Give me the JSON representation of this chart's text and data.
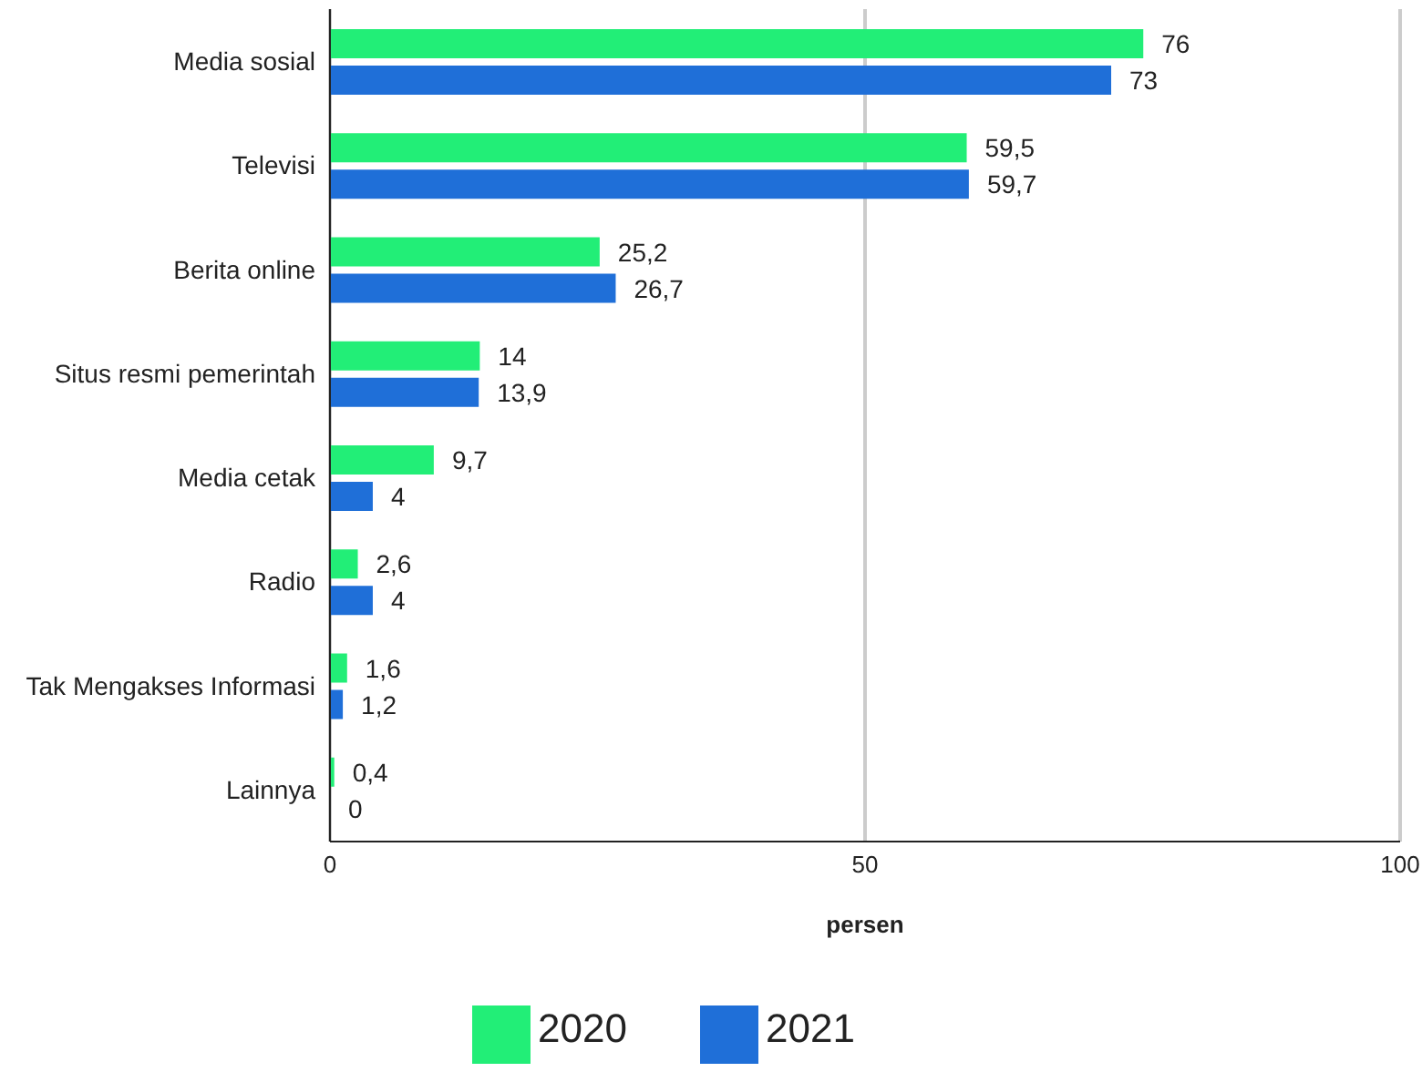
{
  "chart_data": {
    "type": "bar",
    "orientation": "horizontal",
    "xlabel": "persen",
    "categories": [
      "Media sosial",
      "Televisi",
      "Berita online",
      "Situs resmi pemerintah",
      "Media cetak",
      "Radio",
      "Tak Mengakses Informasi",
      "Lainnya"
    ],
    "series": [
      {
        "name": "2020",
        "color": "#22ee77",
        "values": [
          76,
          59.5,
          25.2,
          14,
          9.7,
          2.6,
          1.6,
          0.4
        ],
        "value_labels": [
          "76",
          "59,5",
          "25,2",
          "14",
          "9,7",
          "2,6",
          "1,6",
          "0,4"
        ]
      },
      {
        "name": "2021",
        "color": "#1f6fd8",
        "values": [
          73,
          59.7,
          26.7,
          13.9,
          4,
          4,
          1.2,
          0
        ],
        "value_labels": [
          "73",
          "59,7",
          "26,7",
          "13,9",
          "4",
          "4",
          "1,2",
          "0"
        ]
      }
    ],
    "xlim": [
      0,
      100
    ],
    "xticks": [
      0,
      50,
      100
    ],
    "grid": "x",
    "legend": "bottom"
  }
}
